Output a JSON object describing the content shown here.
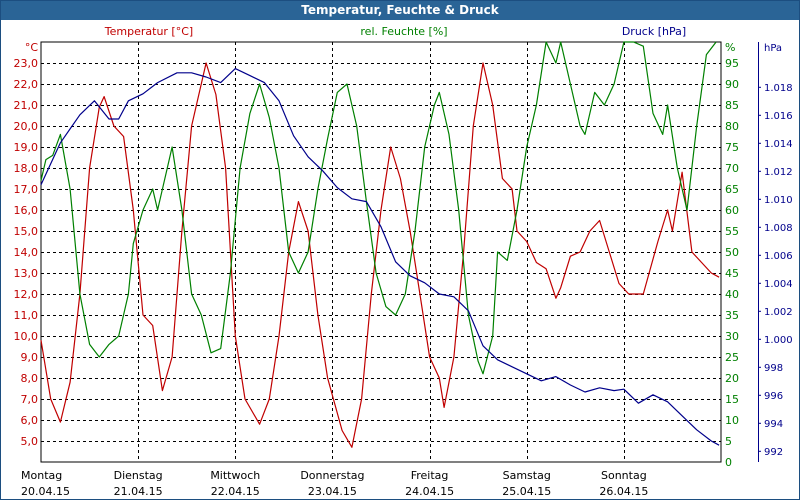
{
  "window": {
    "title": "Temperatur, Feuchte & Druck"
  },
  "chart_data": {
    "type": "line",
    "title": "Temperatur, Feuchte & Druck",
    "x": {
      "ticks": [
        {
          "day": "Montag",
          "date": "20.04.15"
        },
        {
          "day": "Dienstag",
          "date": "21.04.15"
        },
        {
          "day": "Mittwoch",
          "date": "22.04.15"
        },
        {
          "day": "Donnerstag",
          "date": "23.04.15"
        },
        {
          "day": "Freitag",
          "date": "24.04.15"
        },
        {
          "day": "Samstag",
          "date": "25.04.15"
        },
        {
          "day": "Sonntag",
          "date": "26.04.15"
        }
      ],
      "range_days": [
        0,
        7
      ]
    },
    "axes": {
      "temp": {
        "unit": "°C",
        "min": 4.0,
        "max": 24.0,
        "ticks": [
          "5,0",
          "6,0",
          "7,0",
          "8,0",
          "9,0",
          "10,0",
          "11,0",
          "12,0",
          "13,0",
          "14,0",
          "15,0",
          "16,0",
          "17,0",
          "18,0",
          "19,0",
          "20,0",
          "21,0",
          "22,0",
          "23,0"
        ],
        "color": "#c00000"
      },
      "hum": {
        "unit": "%",
        "min": 0,
        "max": 100,
        "ticks": [
          "0",
          "5",
          "10",
          "15",
          "20",
          "25",
          "30",
          "35",
          "40",
          "45",
          "50",
          "55",
          "60",
          "65",
          "70",
          "75",
          "80",
          "85",
          "90",
          "95"
        ],
        "color": "#008000"
      },
      "press": {
        "unit": "hPa",
        "min": 991.2,
        "max": 1021.2,
        "ticks": [
          "992",
          "994",
          "996",
          "998",
          "1.000",
          "1.002",
          "1.004",
          "1.006",
          "1.008",
          "1.010",
          "1.012",
          "1.014",
          "1.016",
          "1.018"
        ],
        "color": "#00008b"
      }
    },
    "grid": true,
    "legend": [
      "Temperatur [°C]",
      "rel. Feuchte [%]",
      "Druck [hPa]"
    ],
    "series": [
      {
        "name": "Temperatur [°C]",
        "axis": "temp",
        "color": "#c00000",
        "points": [
          [
            0.0,
            9.8
          ],
          [
            0.1,
            7.0
          ],
          [
            0.2,
            5.9
          ],
          [
            0.3,
            7.8
          ],
          [
            0.4,
            12.0
          ],
          [
            0.5,
            18.0
          ],
          [
            0.6,
            20.9
          ],
          [
            0.65,
            21.4
          ],
          [
            0.75,
            20.0
          ],
          [
            0.85,
            19.5
          ],
          [
            0.95,
            16.0
          ],
          [
            1.05,
            11.0
          ],
          [
            1.15,
            10.5
          ],
          [
            1.25,
            7.4
          ],
          [
            1.35,
            9.0
          ],
          [
            1.45,
            15.0
          ],
          [
            1.55,
            20.0
          ],
          [
            1.7,
            23.0
          ],
          [
            1.8,
            21.5
          ],
          [
            1.9,
            18.0
          ],
          [
            2.0,
            10.0
          ],
          [
            2.1,
            7.0
          ],
          [
            2.25,
            5.8
          ],
          [
            2.35,
            7.0
          ],
          [
            2.45,
            10.0
          ],
          [
            2.55,
            14.0
          ],
          [
            2.65,
            16.4
          ],
          [
            2.75,
            15.0
          ],
          [
            2.85,
            11.0
          ],
          [
            2.95,
            8.0
          ],
          [
            3.1,
            5.5
          ],
          [
            3.2,
            4.7
          ],
          [
            3.3,
            7.0
          ],
          [
            3.4,
            12.0
          ],
          [
            3.5,
            16.0
          ],
          [
            3.6,
            19.0
          ],
          [
            3.7,
            17.5
          ],
          [
            3.8,
            15.0
          ],
          [
            3.9,
            12.0
          ],
          [
            4.0,
            9.0
          ],
          [
            4.1,
            8.0
          ],
          [
            4.15,
            6.6
          ],
          [
            4.25,
            9.0
          ],
          [
            4.35,
            14.0
          ],
          [
            4.45,
            20.0
          ],
          [
            4.55,
            23.0
          ],
          [
            4.65,
            21.0
          ],
          [
            4.75,
            17.5
          ],
          [
            4.85,
            17.0
          ],
          [
            4.9,
            15.0
          ],
          [
            5.0,
            14.5
          ],
          [
            5.1,
            13.5
          ],
          [
            5.2,
            13.2
          ],
          [
            5.3,
            11.8
          ],
          [
            5.35,
            12.3
          ],
          [
            5.45,
            13.8
          ],
          [
            5.55,
            14.0
          ],
          [
            5.65,
            15.0
          ],
          [
            5.75,
            15.5
          ],
          [
            5.85,
            14.0
          ],
          [
            5.95,
            12.5
          ],
          [
            6.05,
            12.0
          ],
          [
            6.2,
            12.0
          ],
          [
            6.35,
            14.5
          ],
          [
            6.45,
            16.0
          ],
          [
            6.5,
            15.0
          ],
          [
            6.6,
            17.8
          ],
          [
            6.7,
            14.0
          ],
          [
            6.8,
            13.5
          ],
          [
            6.9,
            13.0
          ],
          [
            6.98,
            12.8
          ]
        ]
      },
      {
        "name": "rel. Feuchte [%]",
        "axis": "hum",
        "color": "#008000",
        "points": [
          [
            0.0,
            67
          ],
          [
            0.05,
            72
          ],
          [
            0.12,
            73
          ],
          [
            0.2,
            78
          ],
          [
            0.3,
            65
          ],
          [
            0.4,
            40
          ],
          [
            0.5,
            28
          ],
          [
            0.6,
            25
          ],
          [
            0.7,
            28
          ],
          [
            0.8,
            30
          ],
          [
            0.9,
            40
          ],
          [
            0.95,
            52
          ],
          [
            1.05,
            60
          ],
          [
            1.15,
            65
          ],
          [
            1.2,
            60
          ],
          [
            1.3,
            70
          ],
          [
            1.35,
            75
          ],
          [
            1.45,
            60
          ],
          [
            1.55,
            40
          ],
          [
            1.65,
            35
          ],
          [
            1.75,
            26
          ],
          [
            1.85,
            27
          ],
          [
            1.95,
            45
          ],
          [
            2.05,
            70
          ],
          [
            2.15,
            83
          ],
          [
            2.25,
            90
          ],
          [
            2.35,
            82
          ],
          [
            2.45,
            70
          ],
          [
            2.55,
            50
          ],
          [
            2.65,
            45
          ],
          [
            2.75,
            50
          ],
          [
            2.85,
            65
          ],
          [
            2.95,
            77
          ],
          [
            3.05,
            88
          ],
          [
            3.15,
            90
          ],
          [
            3.25,
            80
          ],
          [
            3.35,
            62
          ],
          [
            3.45,
            45
          ],
          [
            3.55,
            37
          ],
          [
            3.65,
            35
          ],
          [
            3.75,
            40
          ],
          [
            3.85,
            55
          ],
          [
            3.95,
            75
          ],
          [
            4.05,
            85
          ],
          [
            4.1,
            88
          ],
          [
            4.2,
            78
          ],
          [
            4.3,
            60
          ],
          [
            4.4,
            35
          ],
          [
            4.5,
            24
          ],
          [
            4.55,
            21
          ],
          [
            4.65,
            30
          ],
          [
            4.7,
            50
          ],
          [
            4.8,
            48
          ],
          [
            4.9,
            60
          ],
          [
            5.0,
            75
          ],
          [
            5.1,
            85
          ],
          [
            5.2,
            100
          ],
          [
            5.3,
            95
          ],
          [
            5.35,
            100
          ],
          [
            5.45,
            90
          ],
          [
            5.55,
            80
          ],
          [
            5.6,
            78
          ],
          [
            5.7,
            88
          ],
          [
            5.8,
            85
          ],
          [
            5.9,
            90
          ],
          [
            6.0,
            100
          ],
          [
            6.1,
            100
          ],
          [
            6.2,
            99
          ],
          [
            6.3,
            83
          ],
          [
            6.4,
            78
          ],
          [
            6.45,
            85
          ],
          [
            6.55,
            70
          ],
          [
            6.65,
            60
          ],
          [
            6.75,
            80
          ],
          [
            6.85,
            97
          ],
          [
            6.95,
            100
          ]
        ]
      },
      {
        "name": "Druck [hPa]",
        "axis": "press",
        "color": "#00008b",
        "points": [
          [
            0.0,
            1011.0
          ],
          [
            0.2,
            1014.0
          ],
          [
            0.4,
            1016.0
          ],
          [
            0.55,
            1017.0
          ],
          [
            0.7,
            1015.7
          ],
          [
            0.8,
            1015.7
          ],
          [
            0.9,
            1017.0
          ],
          [
            1.05,
            1017.5
          ],
          [
            1.2,
            1018.3
          ],
          [
            1.4,
            1019.0
          ],
          [
            1.55,
            1019.0
          ],
          [
            1.7,
            1018.7
          ],
          [
            1.85,
            1018.3
          ],
          [
            2.0,
            1019.3
          ],
          [
            2.15,
            1018.8
          ],
          [
            2.3,
            1018.3
          ],
          [
            2.45,
            1017.0
          ],
          [
            2.6,
            1014.5
          ],
          [
            2.75,
            1013.0
          ],
          [
            2.9,
            1012.0
          ],
          [
            3.05,
            1010.8
          ],
          [
            3.2,
            1010.0
          ],
          [
            3.35,
            1009.8
          ],
          [
            3.5,
            1008.0
          ],
          [
            3.65,
            1005.5
          ],
          [
            3.8,
            1004.5
          ],
          [
            3.95,
            1004.0
          ],
          [
            4.1,
            1003.2
          ],
          [
            4.25,
            1003.0
          ],
          [
            4.4,
            1002.0
          ],
          [
            4.55,
            999.5
          ],
          [
            4.7,
            998.5
          ],
          [
            4.85,
            998.0
          ],
          [
            5.0,
            997.5
          ],
          [
            5.15,
            997.0
          ],
          [
            5.3,
            997.3
          ],
          [
            5.45,
            996.7
          ],
          [
            5.6,
            996.2
          ],
          [
            5.75,
            996.5
          ],
          [
            5.9,
            996.3
          ],
          [
            6.0,
            996.4
          ],
          [
            6.15,
            995.4
          ],
          [
            6.3,
            996.0
          ],
          [
            6.45,
            995.5
          ],
          [
            6.6,
            994.5
          ],
          [
            6.75,
            993.5
          ],
          [
            6.9,
            992.7
          ],
          [
            6.98,
            992.4
          ]
        ]
      }
    ]
  }
}
